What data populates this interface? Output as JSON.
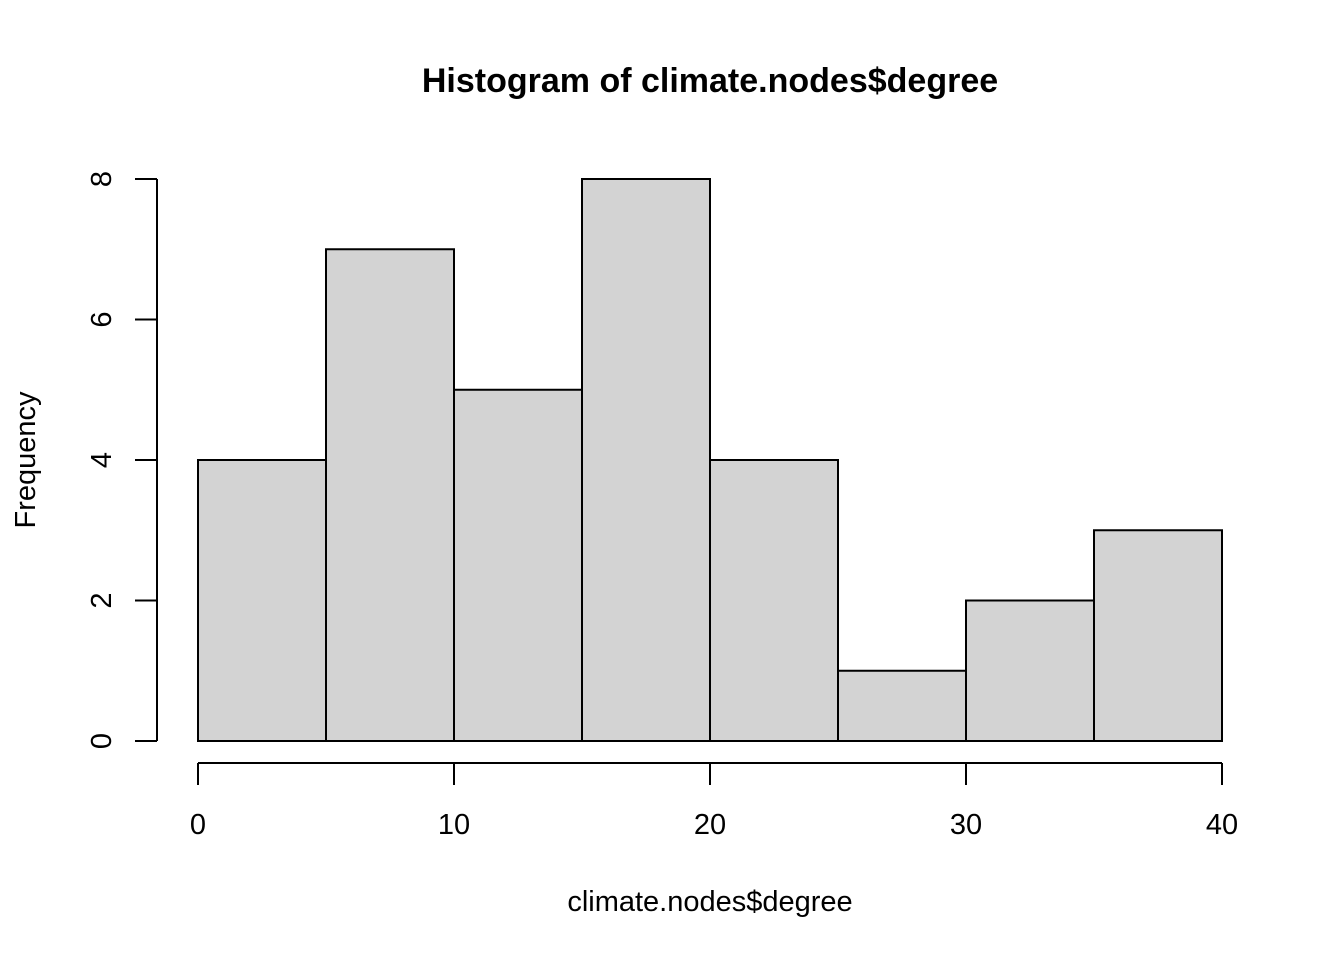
{
  "chart_data": {
    "type": "bar",
    "title": "Histogram of climate.nodes$degree",
    "xlabel": "climate.nodes$degree",
    "ylabel": "Frequency",
    "bins": [
      {
        "from": 0,
        "to": 5,
        "count": 4
      },
      {
        "from": 5,
        "to": 10,
        "count": 7
      },
      {
        "from": 10,
        "to": 15,
        "count": 5
      },
      {
        "from": 15,
        "to": 20,
        "count": 8
      },
      {
        "from": 20,
        "to": 25,
        "count": 4
      },
      {
        "from": 25,
        "to": 30,
        "count": 1
      },
      {
        "from": 30,
        "to": 35,
        "count": 2
      },
      {
        "from": 35,
        "to": 40,
        "count": 3
      }
    ],
    "xlim": [
      0,
      40
    ],
    "ylim": [
      0,
      8
    ],
    "x_ticks": [
      0,
      10,
      20,
      30,
      40
    ],
    "y_ticks": [
      0,
      2,
      4,
      6,
      8
    ],
    "colors": {
      "bar_fill": "#d3d3d3",
      "bar_stroke": "#000000"
    },
    "grid": false
  }
}
